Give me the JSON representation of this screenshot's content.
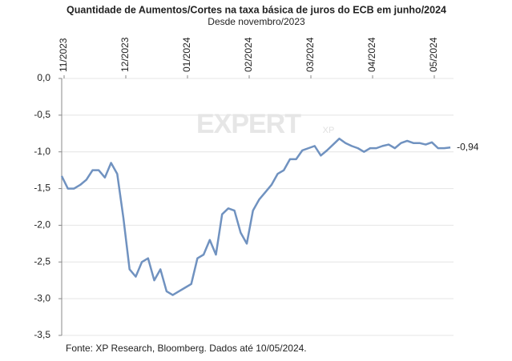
{
  "chart_data": {
    "type": "line",
    "title": "Quantidade de Aumentos/Cortes na taxa básica de juros do ECB em junho/2024",
    "subtitle": "Desde novembro/2023",
    "footnote": "Fonte: XP Research, Bloomberg. Dados até 10/05/2024.",
    "watermark": "EXPERT",
    "watermark_sub": "XP",
    "categories": [
      "11/2023",
      null,
      null,
      null,
      null,
      null,
      null,
      null,
      null,
      null,
      "12/2023",
      null,
      null,
      null,
      null,
      null,
      null,
      null,
      null,
      null,
      "01/2024",
      null,
      null,
      null,
      null,
      null,
      null,
      null,
      null,
      null,
      "02/2024",
      null,
      null,
      null,
      null,
      null,
      null,
      null,
      null,
      null,
      "03/2024",
      null,
      null,
      null,
      null,
      null,
      null,
      null,
      null,
      null,
      "04/2024",
      null,
      null,
      null,
      null,
      null,
      null,
      null,
      null,
      null,
      "05/2024",
      null,
      null,
      null
    ],
    "series": [
      {
        "name": "Quantidade de Aumentos/Cortes",
        "color": "#7092c0",
        "values": [
          -1.33,
          -1.5,
          -1.5,
          -1.45,
          -1.38,
          -1.25,
          -1.25,
          -1.35,
          -1.15,
          -1.3,
          -1.9,
          -2.6,
          -2.7,
          -2.5,
          -2.45,
          -2.75,
          -2.6,
          -2.9,
          -2.95,
          -2.9,
          -2.85,
          -2.8,
          -2.45,
          -2.4,
          -2.2,
          -2.4,
          -1.85,
          -1.77,
          -1.8,
          -2.1,
          -2.25,
          -1.8,
          -1.65,
          -1.55,
          -1.45,
          -1.3,
          -1.25,
          -1.1,
          -1.1,
          -0.98,
          -0.95,
          -0.92,
          -1.05,
          -0.98,
          -0.9,
          -0.82,
          -0.88,
          -0.92,
          -0.95,
          -1.0,
          -0.95,
          -0.95,
          -0.92,
          -0.9,
          -0.95,
          -0.88,
          -0.85,
          -0.88,
          -0.88,
          -0.9,
          -0.87,
          -0.95,
          -0.95,
          -0.94
        ],
        "value_labels": {
          "63": "-0,94"
        }
      }
    ],
    "ylim": [
      -3.5,
      0
    ],
    "yticks": [
      {
        "value": 0,
        "label": "0,0"
      },
      {
        "value": -0.5,
        "label": "-0,5"
      },
      {
        "value": -1,
        "label": "-1,0"
      },
      {
        "value": -1.5,
        "label": "-1,5"
      },
      {
        "value": -2,
        "label": "-2,0"
      },
      {
        "value": -2.5,
        "label": "-2,5"
      },
      {
        "value": -3,
        "label": "-3,0"
      },
      {
        "value": -3.5,
        "label": "-3,5"
      }
    ],
    "grid": true
  }
}
